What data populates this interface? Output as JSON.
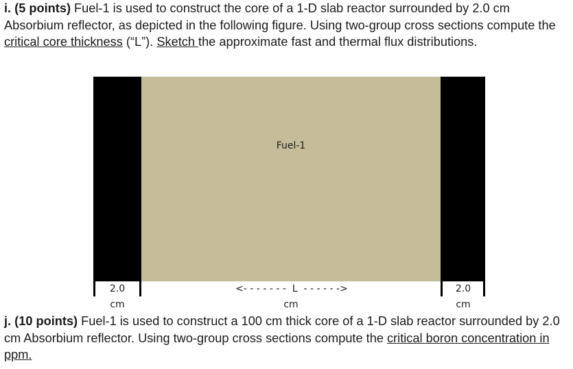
{
  "question_i": {
    "label": "i. (5 points)",
    "text_1": " Fuel-1 is used to construct the core of a 1-D slab reactor surrounded by 2.0 cm Absorbium reflector, as depicted in the following figure. Using two-group cross sections compute the ",
    "underline_1": "critical core thickness",
    "text_2": " (“L”).  ",
    "underline_2": "Sketch ",
    "text_3": "the approximate fast and thermal flux distributions."
  },
  "figure": {
    "core_label": "Fuel-1",
    "left_reflector_value": "2.0",
    "left_reflector_unit": "cm",
    "core_dimension": "<- - - - - - -  L  - - - - - ->",
    "core_dimension_unit": "cm",
    "right_reflector_value": "2.0",
    "right_reflector_unit": "cm",
    "colors": {
      "core": "#c5bd9a",
      "reflector": "#000000"
    }
  },
  "question_j": {
    "label": "j. (10 points)",
    "text_1": " Fuel-1 is used to construct a 100 cm thick core of a 1-D slab reactor surrounded by 2.0 cm Absorbium reflector. Using two-group cross sections compute the ",
    "underline_1": "critical boron concentration in ppm."
  }
}
